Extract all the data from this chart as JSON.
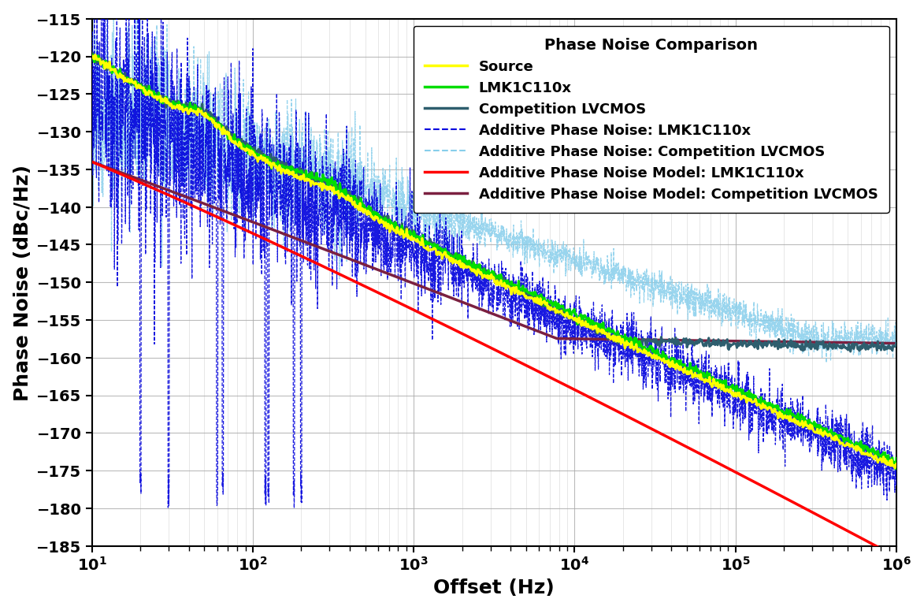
{
  "title": "Phase Noise Comparison",
  "xlabel": "Offset (Hz)",
  "ylabel": "Phase Noise (dBc/Hz)",
  "xlim": [
    10,
    1000000
  ],
  "ylim": [
    -185,
    -115
  ],
  "yticks": [
    -185,
    -180,
    -175,
    -170,
    -165,
    -160,
    -155,
    -150,
    -145,
    -140,
    -135,
    -130,
    -125,
    -120,
    -115
  ],
  "background_color": "#ffffff",
  "grid_color": "#aaaaaa",
  "legend_title": "Phase Noise Comparison",
  "comp_color": "#2e5e6e",
  "lmk_color": "#00dd00",
  "source_color": "#ffff00",
  "add_lmk_color": "#0000dd",
  "add_comp_color": "#87ceeb",
  "model_lmk_color": "#ff0000",
  "model_comp_color": "#7b2040"
}
